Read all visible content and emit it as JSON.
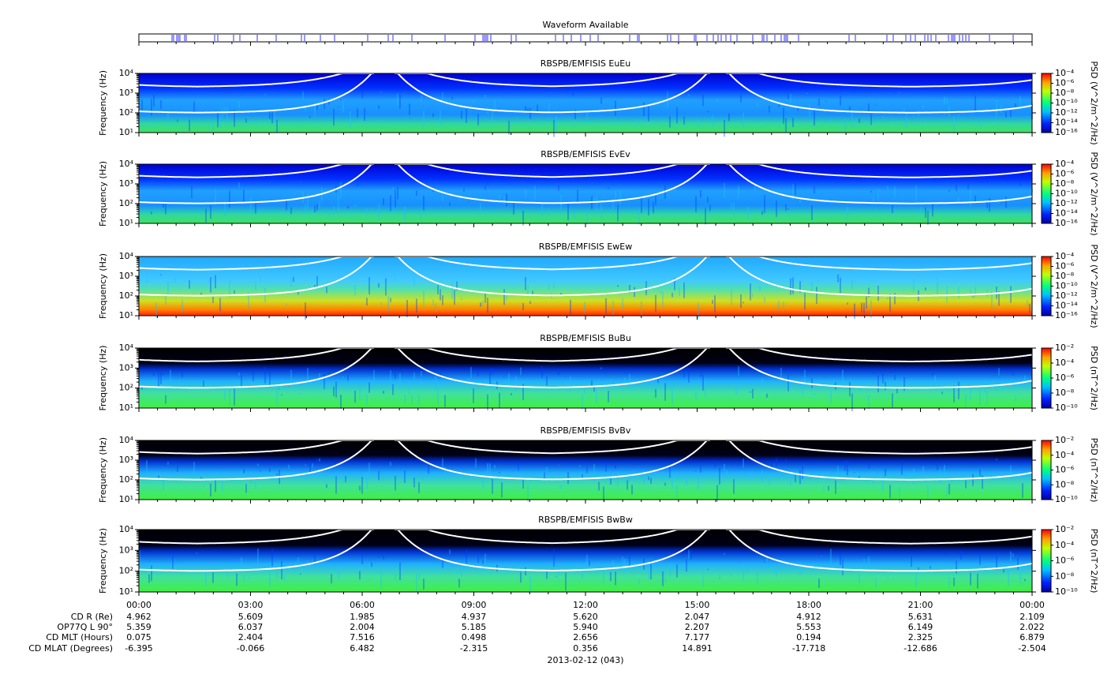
{
  "chart_data": {
    "type": "spectrogram",
    "waveform_title": "Waveform Available",
    "xticks": [
      "00:00",
      "03:00",
      "06:00",
      "09:00",
      "12:00",
      "15:00",
      "18:00",
      "21:00",
      "00:00"
    ],
    "date_label": "2013-02-12 (043)",
    "panels": [
      {
        "title": "RBSPB/EMFISIS  EuEu",
        "ylabel": "Frequency (Hz)",
        "ylim": [
          10,
          10000
        ],
        "yticks": [
          {
            "value": 10,
            "label": "10¹"
          },
          {
            "value": 100,
            "label": "10²"
          },
          {
            "value": 1000,
            "label": "10³"
          },
          {
            "value": 10000,
            "label": "10⁴"
          }
        ],
        "zlabel": "PSD (V^2/m^2/Hz)",
        "zlim": [
          1e-16,
          0.0001
        ],
        "zticks": [
          {
            "value": 0.0001,
            "label": "10⁻⁴"
          },
          {
            "value": 1e-06,
            "label": "10⁻⁶"
          },
          {
            "value": 1e-08,
            "label": "10⁻⁸"
          },
          {
            "value": 1e-10,
            "label": "10⁻¹⁰"
          },
          {
            "value": 1e-12,
            "label": "10⁻¹²"
          },
          {
            "value": 1e-14,
            "label": "10⁻¹⁴"
          },
          {
            "value": 1e-16,
            "label": "10⁻¹⁶"
          }
        ]
      },
      {
        "title": "RBSPB/EMFISIS  EvEv",
        "ylabel": "Frequency (Hz)",
        "ylim": [
          10,
          10000
        ],
        "yticks": [
          {
            "value": 10,
            "label": "10¹"
          },
          {
            "value": 100,
            "label": "10²"
          },
          {
            "value": 1000,
            "label": "10³"
          },
          {
            "value": 10000,
            "label": "10⁴"
          }
        ],
        "zlabel": "PSD (V^2/m^2/Hz)",
        "zlim": [
          1e-16,
          0.0001
        ],
        "zticks": [
          {
            "value": 0.0001,
            "label": "10⁻⁴"
          },
          {
            "value": 1e-06,
            "label": "10⁻⁶"
          },
          {
            "value": 1e-08,
            "label": "10⁻⁸"
          },
          {
            "value": 1e-10,
            "label": "10⁻¹⁰"
          },
          {
            "value": 1e-12,
            "label": "10⁻¹²"
          },
          {
            "value": 1e-14,
            "label": "10⁻¹⁴"
          },
          {
            "value": 1e-16,
            "label": "10⁻¹⁶"
          }
        ]
      },
      {
        "title": "RBSPB/EMFISIS  EwEw",
        "ylabel": "Frequency (Hz)",
        "ylim": [
          10,
          10000
        ],
        "yticks": [
          {
            "value": 10,
            "label": "10¹"
          },
          {
            "value": 100,
            "label": "10²"
          },
          {
            "value": 1000,
            "label": "10³"
          },
          {
            "value": 10000,
            "label": "10⁴"
          }
        ],
        "zlabel": "PSD (V^2/m^2/Hz)",
        "zlim": [
          1e-16,
          0.0001
        ],
        "zticks": [
          {
            "value": 0.0001,
            "label": "10⁻⁴"
          },
          {
            "value": 1e-06,
            "label": "10⁻⁶"
          },
          {
            "value": 1e-08,
            "label": "10⁻⁸"
          },
          {
            "value": 1e-10,
            "label": "10⁻¹⁰"
          },
          {
            "value": 1e-12,
            "label": "10⁻¹²"
          },
          {
            "value": 1e-14,
            "label": "10⁻¹⁴"
          },
          {
            "value": 1e-16,
            "label": "10⁻¹⁶"
          }
        ]
      },
      {
        "title": "RBSPB/EMFISIS  BuBu",
        "ylabel": "Frequency (Hz)",
        "ylim": [
          10,
          10000
        ],
        "yticks": [
          {
            "value": 10,
            "label": "10¹"
          },
          {
            "value": 100,
            "label": "10²"
          },
          {
            "value": 1000,
            "label": "10³"
          },
          {
            "value": 10000,
            "label": "10⁴"
          }
        ],
        "zlabel": "PSD (nT^2/Hz)",
        "zlim": [
          1e-10,
          0.01
        ],
        "zticks": [
          {
            "value": 0.01,
            "label": "10⁻²"
          },
          {
            "value": 0.0001,
            "label": "10⁻⁴"
          },
          {
            "value": 1e-06,
            "label": "10⁻⁶"
          },
          {
            "value": 1e-08,
            "label": "10⁻⁸"
          },
          {
            "value": 1e-10,
            "label": "10⁻¹⁰"
          }
        ]
      },
      {
        "title": "RBSPB/EMFISIS  BvBv",
        "ylabel": "Frequency (Hz)",
        "ylim": [
          10,
          10000
        ],
        "yticks": [
          {
            "value": 10,
            "label": "10¹"
          },
          {
            "value": 100,
            "label": "10²"
          },
          {
            "value": 1000,
            "label": "10³"
          },
          {
            "value": 10000,
            "label": "10⁴"
          }
        ],
        "zlabel": "PSD (nT^2/Hz)",
        "zlim": [
          1e-10,
          0.01
        ],
        "zticks": [
          {
            "value": 0.01,
            "label": "10⁻²"
          },
          {
            "value": 0.0001,
            "label": "10⁻⁴"
          },
          {
            "value": 1e-06,
            "label": "10⁻⁶"
          },
          {
            "value": 1e-08,
            "label": "10⁻⁸"
          },
          {
            "value": 1e-10,
            "label": "10⁻¹⁰"
          }
        ]
      },
      {
        "title": "RBSPB/EMFISIS  BwBw",
        "ylabel": "Frequency (Hz)",
        "ylim": [
          10,
          10000
        ],
        "yticks": [
          {
            "value": 10,
            "label": "10¹"
          },
          {
            "value": 100,
            "label": "10²"
          },
          {
            "value": 1000,
            "label": "10³"
          },
          {
            "value": 10000,
            "label": "10⁴"
          }
        ],
        "zlabel": "PSD (nT^2/Hz)",
        "zlim": [
          1e-10,
          0.01
        ],
        "zticks": [
          {
            "value": 0.01,
            "label": "10⁻²"
          },
          {
            "value": 0.0001,
            "label": "10⁻⁴"
          },
          {
            "value": 1e-06,
            "label": "10⁻⁶"
          },
          {
            "value": 1e-08,
            "label": "10⁻⁸"
          },
          {
            "value": 1e-10,
            "label": "10⁻¹⁰"
          }
        ]
      }
    ],
    "ephemeris": [
      {
        "label": "CD R (Re)",
        "values": [
          "4.962",
          "5.609",
          "1.985",
          "4.937",
          "5.620",
          "2.047",
          "4.912",
          "5.631",
          "2.109"
        ]
      },
      {
        "label": "OP77Q L 90°",
        "values": [
          "5.359",
          "6.037",
          "2.004",
          "5.185",
          "5.940",
          "2.207",
          "5.553",
          "6.149",
          "2.022"
        ]
      },
      {
        "label": "CD MLT (Hours)",
        "values": [
          "0.075",
          "2.404",
          "7.516",
          "0.498",
          "2.656",
          "7.177",
          "0.194",
          "2.325",
          "6.879"
        ]
      },
      {
        "label": "CD MLAT (Degrees)",
        "values": [
          "-6.395",
          "-0.066",
          "6.482",
          "-2.315",
          "0.356",
          "14.891",
          "-17.718",
          "-12.686",
          "-2.504"
        ]
      }
    ]
  }
}
